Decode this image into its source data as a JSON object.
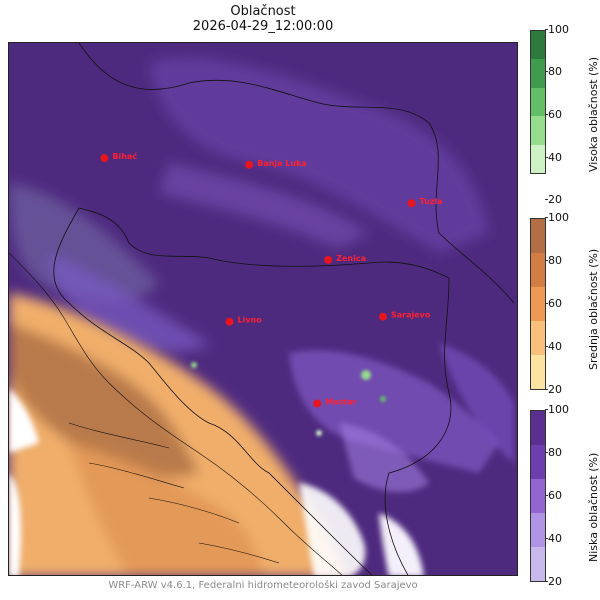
{
  "title": "Oblačnost",
  "timestamp": "2026-04-29_12:00:00",
  "footer": "WRF-ARW v4.6.1, Federalni hidrometeorološki zavod Sarajevo",
  "colors": {
    "low_cloud": [
      "#c9b8ec",
      "#b193e3",
      "#9265d0",
      "#6d3fae",
      "#5a2f8f"
    ],
    "mid_cloud": [
      "#fde3a2",
      "#f8c07a",
      "#ee9a55",
      "#d27d44",
      "#b46e45"
    ],
    "high_cloud": [
      "#cdf1c5",
      "#95dc8e",
      "#63bf67",
      "#3f9b4d",
      "#2d7a3c"
    ],
    "city_marker": "#e8141f",
    "city_label": "#ff2030"
  },
  "cities": [
    {
      "name": "Bihać",
      "lon": 15.87,
      "lat": 44.81
    },
    {
      "name": "Banja Luka",
      "lon": 17.19,
      "lat": 44.77
    },
    {
      "name": "Tuzla",
      "lon": 18.67,
      "lat": 44.54
    },
    {
      "name": "Zenica",
      "lon": 17.91,
      "lat": 44.2
    },
    {
      "name": "Livno",
      "lon": 17.01,
      "lat": 43.83
    },
    {
      "name": "Sarajevo",
      "lon": 18.41,
      "lat": 43.86
    },
    {
      "name": "Mostar",
      "lon": 17.81,
      "lat": 43.34
    }
  ],
  "colorbars": [
    {
      "label": "Visoka oblačnost (%)",
      "ticks": [
        "100",
        "80",
        "60",
        "40",
        "20"
      ],
      "palette": "high_cloud"
    },
    {
      "label": "Srednja oblačnost (%)",
      "ticks": [
        "100",
        "80",
        "60",
        "40",
        "20"
      ],
      "palette": "mid_cloud"
    },
    {
      "label": "Niska oblačnost (%)",
      "ticks": [
        "100",
        "80",
        "60",
        "40",
        "20"
      ],
      "palette": "low_cloud"
    }
  ]
}
